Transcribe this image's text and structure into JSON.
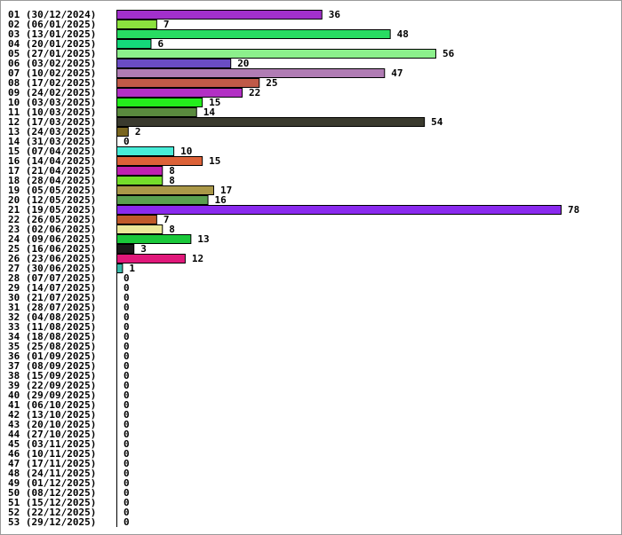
{
  "chart_data": {
    "type": "bar",
    "orientation": "horizontal",
    "grid": false,
    "legend": "none",
    "xlim": [
      0,
      78
    ],
    "categories": [
      "01 (30/12/2024)",
      "02 (06/01/2025)",
      "03 (13/01/2025)",
      "04 (20/01/2025)",
      "05 (27/01/2025)",
      "06 (03/02/2025)",
      "07 (10/02/2025)",
      "08 (17/02/2025)",
      "09 (24/02/2025)",
      "10 (03/03/2025)",
      "11 (10/03/2025)",
      "12 (17/03/2025)",
      "13 (24/03/2025)",
      "14 (31/03/2025)",
      "15 (07/04/2025)",
      "16 (14/04/2025)",
      "17 (21/04/2025)",
      "18 (28/04/2025)",
      "19 (05/05/2025)",
      "20 (12/05/2025)",
      "21 (19/05/2025)",
      "22 (26/05/2025)",
      "23 (02/06/2025)",
      "24 (09/06/2025)",
      "25 (16/06/2025)",
      "26 (23/06/2025)",
      "27 (30/06/2025)",
      "28 (07/07/2025)",
      "29 (14/07/2025)",
      "30 (21/07/2025)",
      "31 (28/07/2025)",
      "32 (04/08/2025)",
      "33 (11/08/2025)",
      "34 (18/08/2025)",
      "35 (25/08/2025)",
      "36 (01/09/2025)",
      "37 (08/09/2025)",
      "38 (15/09/2025)",
      "39 (22/09/2025)",
      "40 (29/09/2025)",
      "41 (06/10/2025)",
      "42 (13/10/2025)",
      "43 (20/10/2025)",
      "44 (27/10/2025)",
      "45 (03/11/2025)",
      "46 (10/11/2025)",
      "47 (17/11/2025)",
      "48 (24/11/2025)",
      "49 (01/12/2025)",
      "50 (08/12/2025)",
      "51 (15/12/2025)",
      "52 (22/12/2025)",
      "53 (29/12/2025)"
    ],
    "values": [
      36,
      7,
      48,
      6,
      56,
      20,
      47,
      25,
      22,
      15,
      14,
      54,
      2,
      0,
      10,
      15,
      8,
      8,
      17,
      16,
      78,
      7,
      8,
      13,
      3,
      12,
      1,
      0,
      0,
      0,
      0,
      0,
      0,
      0,
      0,
      0,
      0,
      0,
      0,
      0,
      0,
      0,
      0,
      0,
      0,
      0,
      0,
      0,
      0,
      0,
      0,
      0,
      0
    ],
    "colors": [
      "#a230cc",
      "#8ce23e",
      "#28dc62",
      "#14d87a",
      "#8cf08c",
      "#6a4cc4",
      "#b07cb4",
      "#c05a48",
      "#b230c4",
      "#24ee1c",
      "#5a8a3e",
      "#3a3a2e",
      "#7a6620",
      "#c8c8c8",
      "#48ecd8",
      "#dc6238",
      "#c020b0",
      "#74de2a",
      "#aa9848",
      "#5aa050",
      "#8a2aee",
      "#c05a2a",
      "#ece898",
      "#1ac83a",
      "#1a1a1a",
      "#e0187a",
      "#38b8a8",
      "#cccccc",
      "#cccccc",
      "#cccccc",
      "#cccccc",
      "#cccccc",
      "#cccccc",
      "#cccccc",
      "#cccccc",
      "#cccccc",
      "#cccccc",
      "#cccccc",
      "#cccccc",
      "#cccccc",
      "#cccccc",
      "#cccccc",
      "#cccccc",
      "#cccccc",
      "#cccccc",
      "#cccccc",
      "#cccccc",
      "#cccccc",
      "#cccccc",
      "#cccccc",
      "#cccccc",
      "#cccccc",
      "#cccccc"
    ]
  }
}
